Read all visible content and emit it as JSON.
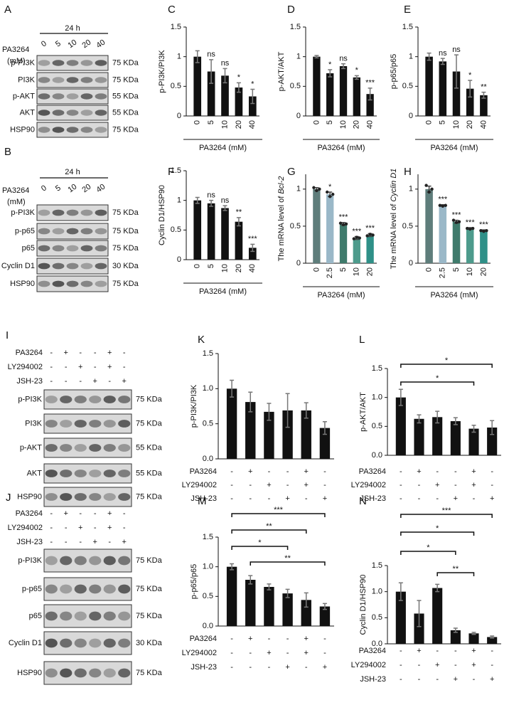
{
  "blots": [
    {
      "label": "A",
      "treatment": "PA3264",
      "unit": "(mM)",
      "time": "24 h",
      "lanes": [
        "0",
        "5",
        "10",
        "20",
        "40"
      ],
      "rows": [
        {
          "name": "p-PI3K",
          "size": "75 KDa"
        },
        {
          "name": "PI3K",
          "size": "75 KDa"
        },
        {
          "name": "p-AKT",
          "size": "55 KDa"
        },
        {
          "name": "AKT",
          "size": "55 KDa"
        },
        {
          "name": "HSP90",
          "size": "75 KDa"
        }
      ]
    },
    {
      "label": "B",
      "treatment": "PA3264",
      "unit": "(mM)",
      "time": "24 h",
      "lanes": [
        "0",
        "5",
        "10",
        "20",
        "40"
      ],
      "rows": [
        {
          "name": "p-PI3K",
          "size": "75 KDa"
        },
        {
          "name": "p-p65",
          "size": "75 KDa"
        },
        {
          "name": "p65",
          "size": "75 KDa"
        },
        {
          "name": "Cyclin D1",
          "size": "30 KDa"
        },
        {
          "name": "HSP90",
          "size": "75 KDa"
        }
      ]
    },
    {
      "label": "I",
      "conditions": [
        {
          "name": "PA3264",
          "signs": [
            "-",
            "+",
            "-",
            "-",
            "+",
            "-"
          ]
        },
        {
          "name": "LY294002",
          "signs": [
            "-",
            "-",
            "+",
            "-",
            "+",
            "-"
          ]
        },
        {
          "name": "JSH-23",
          "signs": [
            "-",
            "-",
            "-",
            "+",
            "-",
            "+"
          ]
        }
      ],
      "rows": [
        {
          "name": "p-PI3K",
          "size": "75 KDa"
        },
        {
          "name": "PI3K",
          "size": "75 KDa"
        },
        {
          "name": "p-AKT",
          "size": "55 KDa"
        },
        {
          "name": "AKT",
          "size": "55 KDa"
        },
        {
          "name": "HSP90",
          "size": "75 KDa"
        }
      ]
    },
    {
      "label": "J",
      "conditions": [
        {
          "name": "PA3264",
          "signs": [
            "-",
            "+",
            "-",
            "-",
            "+",
            "-"
          ]
        },
        {
          "name": "LY294002",
          "signs": [
            "-",
            "-",
            "+",
            "-",
            "+",
            "-"
          ]
        },
        {
          "name": "JSH-23",
          "signs": [
            "-",
            "-",
            "-",
            "+",
            "-",
            "+"
          ]
        }
      ],
      "rows": [
        {
          "name": "p-PI3K",
          "size": "75 KDa"
        },
        {
          "name": "p-p65",
          "size": "75 KDa"
        },
        {
          "name": "p65",
          "size": "75 KDa"
        },
        {
          "name": "Cyclin D1",
          "size": "30 KDa"
        },
        {
          "name": "HSP90",
          "size": "75 KDa"
        }
      ]
    }
  ],
  "chart_data": [
    {
      "type": "bar",
      "panel": "C",
      "ylabel": "p-PI3K/PI3K",
      "xlabel": "PA3264 (mM)",
      "categories": [
        "0",
        "5",
        "10",
        "20",
        "40"
      ],
      "values": [
        1.0,
        0.75,
        0.68,
        0.48,
        0.33
      ],
      "errors": [
        0.1,
        0.2,
        0.12,
        0.08,
        0.12
      ],
      "annotations": [
        null,
        "ns",
        "ns",
        "*",
        "*"
      ],
      "ylim": [
        0,
        1.5
      ],
      "yticks": [
        0,
        0.5,
        1,
        1.5
      ],
      "color": "#111111",
      "error_color": "#777777"
    },
    {
      "type": "bar",
      "panel": "D",
      "ylabel": "p-AKT/AKT",
      "xlabel": "PA3264 (mM)",
      "categories": [
        "0",
        "5",
        "10",
        "20",
        "40"
      ],
      "values": [
        1.0,
        0.72,
        0.84,
        0.65,
        0.37
      ],
      "errors": [
        0.02,
        0.06,
        0.04,
        0.03,
        0.1
      ],
      "annotations": [
        null,
        "*",
        "ns",
        "*",
        "***"
      ],
      "ylim": [
        0,
        1.5
      ],
      "yticks": [
        0,
        0.5,
        1,
        1.5
      ],
      "color": "#111111",
      "error_color": "#777777"
    },
    {
      "type": "bar",
      "panel": "E",
      "ylabel": "p-p65/p65",
      "xlabel": "PA3264 (mM)",
      "categories": [
        "0",
        "5",
        "10",
        "20",
        "40"
      ],
      "values": [
        1.0,
        0.92,
        0.75,
        0.46,
        0.35
      ],
      "errors": [
        0.06,
        0.05,
        0.28,
        0.14,
        0.05
      ],
      "annotations": [
        null,
        "ns",
        "ns",
        "*",
        "**"
      ],
      "ylim": [
        0,
        1.5
      ],
      "yticks": [
        0,
        0.5,
        1,
        1.5
      ],
      "color": "#111111",
      "error_color": "#777777"
    },
    {
      "type": "bar",
      "panel": "F",
      "ylabel": "Cyclin D1/HSP90",
      "xlabel": "PA3264 (mM)",
      "categories": [
        "0",
        "5",
        "10",
        "20",
        "40"
      ],
      "values": [
        1.0,
        0.95,
        0.87,
        0.64,
        0.2
      ],
      "errors": [
        0.05,
        0.05,
        0.04,
        0.07,
        0.06
      ],
      "annotations": [
        null,
        "ns",
        "ns",
        "**",
        "***"
      ],
      "ylim": [
        0,
        1.5
      ],
      "yticks": [
        0,
        0.5,
        1,
        1.5
      ],
      "color": "#111111",
      "error_color": "#777777"
    },
    {
      "type": "bar",
      "panel": "G",
      "ylabel": "The mRNA level of",
      "ylabel_gene": "Bcl-2",
      "xlabel": "PA3264 (mM)",
      "categories": [
        "0",
        "2.5",
        "5",
        "10",
        "20"
      ],
      "values": [
        1.0,
        0.93,
        0.53,
        0.34,
        0.38
      ],
      "errors": [
        0.02,
        0.03,
        0.02,
        0.02,
        0.02
      ],
      "annotations": [
        null,
        "*",
        "***",
        "***",
        "***"
      ],
      "points": [
        [
          1.02,
          0.98,
          1.0
        ],
        [
          0.96,
          0.9,
          0.93
        ],
        [
          0.54,
          0.52,
          0.53
        ],
        [
          0.33,
          0.35,
          0.34
        ],
        [
          0.37,
          0.39,
          0.38
        ]
      ],
      "ylim": [
        0,
        1.2
      ],
      "yticks": [
        0,
        0.5,
        1
      ],
      "colors": [
        "#5e7d7b",
        "#9ab8c8",
        "#3f7b6c",
        "#4d9b8c",
        "#2f9088"
      ],
      "error_color": "#444444"
    },
    {
      "type": "bar",
      "panel": "H",
      "ylabel": "The mRNA level of",
      "ylabel_gene": "Cyclin D1",
      "xlabel": "PA3264 (mM)",
      "categories": [
        "0",
        "2.5",
        "5",
        "10",
        "20"
      ],
      "values": [
        1.0,
        0.78,
        0.56,
        0.47,
        0.44
      ],
      "errors": [
        0.04,
        0.01,
        0.02,
        0.01,
        0.01
      ],
      "annotations": [
        null,
        "***",
        "***",
        "***",
        "***"
      ],
      "points": [
        [
          1.05,
          0.96,
          1.0
        ],
        [
          0.78,
          0.77,
          0.78
        ],
        [
          0.58,
          0.55,
          0.56
        ],
        [
          0.47,
          0.46,
          0.47
        ],
        [
          0.44,
          0.43,
          0.44
        ]
      ],
      "ylim": [
        0,
        1.2
      ],
      "yticks": [
        0,
        0.5,
        1
      ],
      "colors": [
        "#5e7d7b",
        "#9ab8c8",
        "#3f7b6c",
        "#4d9b8c",
        "#2f9088"
      ],
      "error_color": "#444444"
    },
    {
      "type": "bar",
      "panel": "K",
      "ylabel": "p-PI3K/PI3K",
      "values": [
        1.0,
        0.81,
        0.67,
        0.69,
        0.69,
        0.44
      ],
      "errors": [
        0.12,
        0.14,
        0.12,
        0.24,
        0.11,
        0.09
      ],
      "conditions": [
        {
          "name": "PA3264",
          "signs": [
            "-",
            "+",
            "-",
            "-",
            "+",
            "-"
          ]
        },
        {
          "name": "LY294002",
          "signs": [
            "-",
            "-",
            "+",
            "-",
            "+",
            "-"
          ]
        },
        {
          "name": "JSH-23",
          "signs": [
            "-",
            "-",
            "-",
            "+",
            "-",
            "+"
          ]
        }
      ],
      "ylim": [
        0,
        1.5
      ],
      "yticks": [
        {
          "value": 0,
          "label": "0.0"
        },
        {
          "value": 0.5,
          "label": "0.5"
        },
        {
          "value": 1,
          "label": "1.0"
        },
        {
          "value": 1.5,
          "label": "1.5"
        }
      ],
      "color": "#111111",
      "error_color": "#777777"
    },
    {
      "type": "bar",
      "panel": "L",
      "ylabel": "p-AKT/AKT",
      "values": [
        1.0,
        0.63,
        0.66,
        0.59,
        0.46,
        0.48
      ],
      "errors": [
        0.14,
        0.07,
        0.1,
        0.06,
        0.06,
        0.12
      ],
      "conditions": [
        {
          "name": "PA3264",
          "signs": [
            "-",
            "+",
            "-",
            "-",
            "+",
            "-"
          ]
        },
        {
          "name": "LY294002",
          "signs": [
            "-",
            "-",
            "+",
            "-",
            "+",
            "-"
          ]
        },
        {
          "name": "JSH-23",
          "signs": [
            "-",
            "-",
            "-",
            "+",
            "-",
            "+"
          ]
        }
      ],
      "brackets": [
        {
          "from": 1,
          "to": 6,
          "label": "*"
        },
        {
          "from": 1,
          "to": 5,
          "label": "*"
        }
      ],
      "ylim": [
        0,
        1.5
      ],
      "yticks": [
        {
          "value": 0,
          "label": "0.0"
        },
        {
          "value": 0.5,
          "label": "0.5"
        },
        {
          "value": 1,
          "label": "1.0"
        },
        {
          "value": 1.5,
          "label": "1.5"
        }
      ],
      "color": "#111111",
      "error_color": "#777777"
    },
    {
      "type": "bar",
      "panel": "M",
      "ylabel": "p-p65/p65",
      "values": [
        1.0,
        0.78,
        0.66,
        0.55,
        0.44,
        0.33
      ],
      "errors": [
        0.05,
        0.07,
        0.05,
        0.07,
        0.12,
        0.05
      ],
      "conditions": [
        {
          "name": "PA3264",
          "signs": [
            "-",
            "+",
            "-",
            "-",
            "+",
            "-"
          ]
        },
        {
          "name": "LY294002",
          "signs": [
            "-",
            "-",
            "+",
            "-",
            "+",
            "-"
          ]
        },
        {
          "name": "JSH-23",
          "signs": [
            "-",
            "-",
            "-",
            "+",
            "-",
            "+"
          ]
        }
      ],
      "brackets": [
        {
          "from": 1,
          "to": 6,
          "label": "***"
        },
        {
          "from": 1,
          "to": 5,
          "label": "**"
        },
        {
          "from": 1,
          "to": 4,
          "label": "*"
        },
        {
          "from": 2,
          "to": 6,
          "label": "**"
        }
      ],
      "ylim": [
        0,
        1.5
      ],
      "yticks": [
        {
          "value": 0,
          "label": "0.0"
        },
        {
          "value": 0.5,
          "label": "0.5"
        },
        {
          "value": 1,
          "label": "1.0"
        },
        {
          "value": 1.5,
          "label": "1.5"
        }
      ],
      "color": "#111111",
      "error_color": "#777777"
    },
    {
      "type": "bar",
      "panel": "N",
      "ylabel": "Cyclin D1/HSP90",
      "values": [
        1.0,
        0.58,
        1.07,
        0.26,
        0.2,
        0.13
      ],
      "errors": [
        0.17,
        0.25,
        0.07,
        0.04,
        0.02,
        0.02
      ],
      "conditions": [
        {
          "name": "PA3264",
          "signs": [
            "-",
            "+",
            "-",
            "-",
            "+",
            "-"
          ]
        },
        {
          "name": "LY294002",
          "signs": [
            "-",
            "-",
            "+",
            "-",
            "+",
            "-"
          ]
        },
        {
          "name": "JSH-23",
          "signs": [
            "-",
            "-",
            "-",
            "+",
            "-",
            "+"
          ]
        }
      ],
      "brackets": [
        {
          "from": 1,
          "to": 6,
          "label": "***"
        },
        {
          "from": 1,
          "to": 5,
          "label": "*"
        },
        {
          "from": 1,
          "to": 4,
          "label": "*"
        },
        {
          "from": 3,
          "to": 5,
          "label": "**"
        }
      ],
      "ylim": [
        0,
        1.5
      ],
      "yticks": [
        {
          "value": 0,
          "label": "0.0"
        },
        {
          "value": 0.5,
          "label": "0.5"
        },
        {
          "value": 1,
          "label": "1.0"
        },
        {
          "value": 1.5,
          "label": "1.5"
        }
      ],
      "color": "#111111",
      "error_color": "#777777"
    }
  ]
}
